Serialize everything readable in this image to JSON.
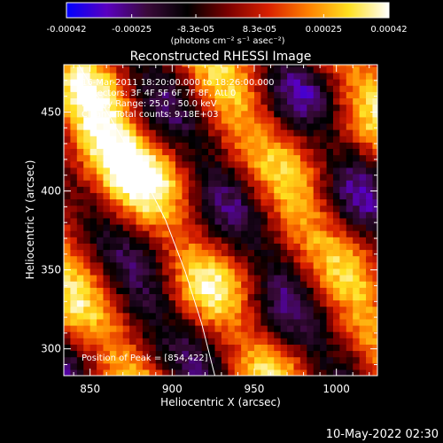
{
  "chart_data": {
    "type": "heatmap",
    "title": "Reconstructed RHESSI Image",
    "xlabel": "Heliocentric X (arcsec)",
    "ylabel": "Heliocentric Y (arcsec)",
    "xlim": [
      834,
      1025
    ],
    "ylim": [
      283,
      480
    ],
    "x_ticks": [
      850,
      900,
      950,
      1000
    ],
    "y_ticks": [
      300,
      350,
      400,
      450
    ],
    "x_tick_labels": [
      "850",
      "900",
      "950",
      "1000"
    ],
    "y_tick_labels": [
      "300",
      "350",
      "400",
      "450"
    ],
    "colorbar": {
      "min": -0.00042,
      "max": 0.00042,
      "tick_values": [
        -0.00042,
        -0.00025,
        -8.3e-05,
        8.3e-05,
        0.00025,
        0.00042
      ],
      "tick_labels": [
        "-0.00042",
        "-0.00025",
        "-8.3e-05",
        "8.3e-05",
        "0.00025",
        "0.00042"
      ],
      "units": "(photons cm⁻² s⁻¹ asec⁻²)",
      "colors": [
        "#0000ff",
        "#5a00c0",
        "#3a0a3a",
        "#000000",
        "#7a0000",
        "#d82000",
        "#ff8000",
        "#ffe020",
        "#ffffff"
      ]
    },
    "annotations": [
      "16-Mar-2011 18:20:00.000 to 18:26:00.000",
      "Detectors: 3F 4F 5F 6F 7F 8F, Att 0",
      "Energy Range: 25.0 - 50.0 keV",
      "Clean  - Total counts: 9.18E+03"
    ],
    "peak_label": "Position of Peak = [854,422]",
    "peak_position": [
      854,
      422
    ],
    "limb_x": [
      843,
      862,
      880,
      896,
      908,
      918,
      926
    ]
  },
  "footer": {
    "date_stamp": "10-May-2022 02:30"
  }
}
